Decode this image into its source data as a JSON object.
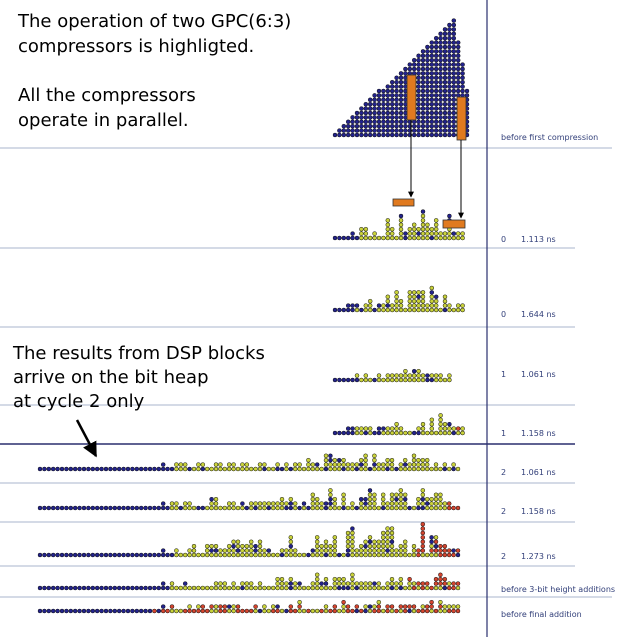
{
  "annotations": {
    "top": [
      "The operation of two GPC(6:3)",
      "compressors is highligted.",
      "All the compressors",
      "operate in parallel."
    ],
    "dsp": [
      "The results from DSP blocks",
      "arrive on the bit heap",
      "at cycle 2 only"
    ]
  },
  "rows": [
    {
      "label": "before first compression"
    },
    {
      "cycle": "0",
      "time": "1.113 ns"
    },
    {
      "cycle": "0",
      "time": "1.644 ns"
    },
    {
      "cycle": "1",
      "time": "1.061 ns"
    },
    {
      "cycle": "1",
      "time": "1.158 ns"
    },
    {
      "cycle": "2",
      "time": "1.061 ns"
    },
    {
      "cycle": "2",
      "time": "1.158 ns"
    },
    {
      "cycle": "2",
      "time": "1.273 ns"
    },
    {
      "label": "before 3-bit height additions"
    },
    {
      "label": "before final addition"
    }
  ]
}
